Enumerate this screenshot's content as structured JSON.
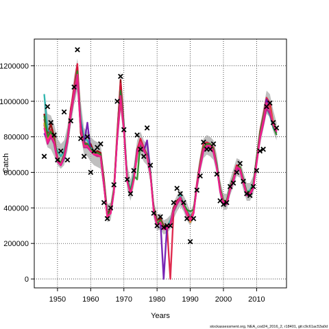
{
  "chart_data": {
    "type": "line",
    "title": "",
    "xlabel": "Years",
    "ylabel": "Catch",
    "xlim": [
      1943,
      2019
    ],
    "ylim": [
      -50000,
      1350000
    ],
    "x_ticks": [
      1950,
      1960,
      1970,
      1980,
      1990,
      2000,
      2010
    ],
    "x_tick_labels": [
      "1950",
      "1960",
      "1970",
      "1980",
      "1990",
      "2000",
      "2010"
    ],
    "y_ticks": [
      0,
      200000,
      400000,
      600000,
      800000,
      1000000,
      1200000
    ],
    "y_tick_labels": [
      "0",
      "200000",
      "400000",
      "600000",
      "800000",
      "1000000",
      "1200000"
    ],
    "grid": true,
    "grid_style": "dotted",
    "band_color": "#a9a9a9",
    "years": [
      1946,
      1947,
      1948,
      1949,
      1950,
      1951,
      1952,
      1953,
      1954,
      1955,
      1956,
      1957,
      1958,
      1959,
      1960,
      1961,
      1962,
      1963,
      1964,
      1965,
      1966,
      1967,
      1968,
      1969,
      1970,
      1971,
      1972,
      1973,
      1974,
      1975,
      1976,
      1977,
      1978,
      1979,
      1980,
      1981,
      1982,
      1983,
      1984,
      1985,
      1986,
      1987,
      1988,
      1989,
      1990,
      1991,
      1992,
      1993,
      1994,
      1995,
      1996,
      1997,
      1998,
      1999,
      2000,
      2001,
      2002,
      2003,
      2004,
      2005,
      2006,
      2007,
      2008,
      2009,
      2010,
      2011,
      2012,
      2013,
      2014,
      2015,
      2016
    ],
    "band_upper": [
      1050000,
      930000,
      920000,
      870000,
      790000,
      760000,
      780000,
      860000,
      980000,
      1140000,
      1240000,
      1000000,
      850000,
      830000,
      800000,
      780000,
      770000,
      760000,
      600000,
      420000,
      430000,
      560000,
      880000,
      1170000,
      960000,
      640000,
      560000,
      640000,
      780000,
      830000,
      780000,
      760000,
      660000,
      440000,
      360000,
      370000,
      330000,
      340000,
      360000,
      430000,
      470000,
      500000,
      470000,
      430000,
      380000,
      420000,
      580000,
      700000,
      790000,
      810000,
      800000,
      780000,
      700000,
      560000,
      480000,
      480000,
      560000,
      620000,
      680000,
      670000,
      600000,
      540000,
      540000,
      580000,
      720000,
      860000,
      960000,
      1060000,
      1040000,
      950000,
      880000
    ],
    "band_lower": [
      800000,
      740000,
      730000,
      690000,
      640000,
      620000,
      640000,
      720000,
      860000,
      980000,
      1060000,
      800000,
      700000,
      690000,
      660000,
      640000,
      630000,
      620000,
      480000,
      320000,
      330000,
      450000,
      730000,
      950000,
      780000,
      500000,
      440000,
      520000,
      650000,
      700000,
      660000,
      640000,
      540000,
      340000,
      270000,
      280000,
      250000,
      260000,
      280000,
      340000,
      380000,
      410000,
      380000,
      330000,
      300000,
      340000,
      480000,
      600000,
      680000,
      700000,
      690000,
      670000,
      590000,
      460000,
      390000,
      390000,
      470000,
      520000,
      580000,
      570000,
      500000,
      440000,
      440000,
      480000,
      620000,
      750000,
      840000,
      930000,
      910000,
      830000,
      780000
    ],
    "series": [
      {
        "color": "#8b0000",
        "values": [
          930000,
          820000,
          870000,
          800000,
          680000,
          640000,
          680000,
          780000,
          960000,
          1060000,
          1190000,
          820000,
          750000,
          760000,
          760000,
          710000,
          720000,
          710000,
          560000,
          370000,
          390000,
          500000,
          810000,
          1120000,
          860000,
          560000,
          490000,
          580000,
          730000,
          780000,
          720000,
          700000,
          590000,
          400000,
          330000,
          340000,
          300000,
          300000,
          310000,
          400000,
          440000,
          460000,
          420000,
          370000,
          330000,
          380000,
          530000,
          650000,
          740000,
          760000,
          750000,
          730000,
          640000,
          510000,
          440000,
          440000,
          510000,
          570000,
          640000,
          620000,
          550000,
          480000,
          480000,
          520000,
          660000,
          800000,
          900000,
          1000000,
          960000,
          880000,
          830000
        ]
      },
      {
        "color": "#20b2aa",
        "values": [
          1040000,
          840000,
          820000,
          760000,
          720000,
          690000,
          720000,
          800000,
          940000,
          1060000,
          1150000,
          900000,
          790000,
          780000,
          740000,
          720000,
          700000,
          690000,
          540000,
          360000,
          380000,
          500000,
          800000,
          1040000,
          870000,
          570000,
          500000,
          590000,
          720000,
          760000,
          720000,
          700000,
          600000,
          390000,
          310000,
          330000,
          280000,
          290000,
          330000,
          380000,
          420000,
          470000,
          420000,
          390000,
          350000,
          380000,
          520000,
          640000,
          730000,
          750000,
          750000,
          720000,
          650000,
          500000,
          440000,
          440000,
          520000,
          570000,
          620000,
          620000,
          560000,
          490000,
          500000,
          540000,
          680000,
          820000,
          890000,
          960000,
          920000,
          850000,
          820000
        ]
      },
      {
        "color": "#dc143c",
        "values": [
          900000,
          790000,
          840000,
          790000,
          680000,
          650000,
          700000,
          790000,
          950000,
          1080000,
          1210000,
          860000,
          770000,
          760000,
          720000,
          710000,
          710000,
          700000,
          530000,
          350000,
          370000,
          500000,
          830000,
          1100000,
          850000,
          550000,
          480000,
          570000,
          720000,
          790000,
          740000,
          700000,
          590000,
          390000,
          300000,
          320000,
          290000,
          290000,
          310,
          390000,
          430000,
          460000,
          410000,
          380000,
          340000,
          380000,
          540000,
          660000,
          760000,
          770000,
          760000,
          740000,
          640000,
          500000,
          430000,
          430000,
          520000,
          570000,
          640000,
          630000,
          550000,
          480000,
          490000,
          530000,
          680000,
          830000,
          920000,
          1020000,
          990000,
          880000,
          840000
        ]
      },
      {
        "color": "#6a0dad",
        "values": [
          820000,
          780000,
          820000,
          760000,
          670000,
          640000,
          680000,
          770000,
          920000,
          1040000,
          1130000,
          880000,
          760000,
          880000,
          720000,
          720000,
          700000,
          690000,
          530000,
          360000,
          380000,
          490000,
          800000,
          1050000,
          850000,
          550000,
          490000,
          560000,
          720000,
          760000,
          720000,
          780000,
          600000,
          390000,
          310000,
          330000,
          290,
          300000,
          310000,
          390000,
          430000,
          460000,
          410000,
          370000,
          330000,
          370000,
          530000,
          640000,
          730000,
          750000,
          750000,
          720000,
          630000,
          500000,
          430000,
          430000,
          510000,
          560000,
          620000,
          620000,
          550000,
          480000,
          480000,
          520000,
          670000,
          810000,
          900000,
          1010000,
          950000,
          870000,
          830000
        ]
      },
      {
        "color": "#c71585",
        "values": [
          870000,
          760000,
          800000,
          760000,
          660000,
          640000,
          690000,
          770000,
          920000,
          1030000,
          1120000,
          840000,
          740000,
          740000,
          720000,
          700000,
          690000,
          690000,
          530000,
          350000,
          370000,
          490000,
          790000,
          1000000,
          840000,
          550000,
          480000,
          560000,
          700000,
          760000,
          720000,
          690000,
          590000,
          380000,
          300000,
          320000,
          280000,
          280000,
          300000,
          380000,
          420000,
          450000,
          410000,
          360000,
          320000,
          370000,
          520000,
          630000,
          720000,
          740000,
          740000,
          710000,
          630000,
          490000,
          420000,
          420000,
          500000,
          550000,
          620000,
          610000,
          540000,
          470000,
          470000,
          510000,
          650000,
          790000,
          870000,
          960000,
          930000,
          860000,
          820000
        ]
      },
      {
        "color": "#d4a017",
        "values": [
          880000,
          780000,
          820000,
          780000,
          670000,
          650000,
          690000,
          780000,
          930000,
          1050000,
          1160000,
          850000,
          750000,
          750000,
          730000,
          710000,
          700000,
          690000,
          540000,
          350000,
          380000,
          500000,
          820000,
          1020000,
          850000,
          560000,
          480000,
          560000,
          710000,
          770000,
          730000,
          700000,
          590000,
          390000,
          310000,
          330000,
          290000,
          300000,
          310000,
          390000,
          430000,
          460000,
          420000,
          370000,
          320000,
          380000,
          530000,
          650000,
          740000,
          760000,
          750000,
          730000,
          640000,
          510000,
          440000,
          440000,
          510000,
          570000,
          630000,
          630000,
          550000,
          490000,
          490000,
          530000,
          670000,
          810000,
          910000,
          990000,
          960000,
          880000,
          840000
        ]
      },
      {
        "color": "#228b22",
        "values": [
          920000,
          800000,
          830000,
          780000,
          680000,
          650000,
          700000,
          780000,
          930000,
          1050000,
          1170000,
          860000,
          760000,
          760000,
          730000,
          710000,
          710000,
          700000,
          540000,
          360000,
          380000,
          500000,
          810000,
          1060000,
          860000,
          560000,
          490000,
          580000,
          560000,
          770000,
          730000,
          700000,
          600000,
          390000,
          310000,
          330000,
          290000,
          300000,
          310000,
          390000,
          430000,
          460000,
          420000,
          390000,
          380000,
          390000,
          530000,
          650000,
          740000,
          760000,
          760000,
          730000,
          640000,
          510000,
          440000,
          440000,
          520000,
          570000,
          630000,
          630000,
          560000,
          490000,
          490000,
          530000,
          680000,
          820000,
          910000,
          990000,
          950000,
          860000,
          810000
        ]
      },
      {
        "color": "#ff1493",
        "values": [
          850000,
          770000,
          810000,
          770000,
          670000,
          640000,
          690000,
          780000,
          930000,
          1050000,
          1150000,
          850000,
          750000,
          750000,
          720000,
          700000,
          700000,
          690000,
          530000,
          350000,
          370000,
          490000,
          800000,
          1030000,
          850000,
          550000,
          480000,
          560000,
          710000,
          770000,
          730000,
          690000,
          590000,
          380000,
          300000,
          320000,
          280000,
          290000,
          310000,
          390000,
          430000,
          460000,
          410000,
          370000,
          330000,
          370000,
          530000,
          640000,
          730000,
          750000,
          750000,
          720000,
          630000,
          500000,
          430000,
          430000,
          510000,
          560000,
          630000,
          620000,
          550000,
          480000,
          480000,
          520000,
          660000,
          800000,
          890000,
          990000,
          950000,
          870000,
          830000
        ]
      }
    ],
    "observed": {
      "marker": "x",
      "x": [
        1946,
        1947,
        1948,
        1949,
        1950,
        1951,
        1952,
        1953,
        1954,
        1955,
        1956,
        1957,
        1958,
        1959,
        1960,
        1961,
        1962,
        1963,
        1964,
        1965,
        1966,
        1967,
        1968,
        1969,
        1970,
        1971,
        1972,
        1973,
        1974,
        1975,
        1976,
        1977,
        1978,
        1979,
        1980,
        1981,
        1982,
        1983,
        1984,
        1985,
        1986,
        1987,
        1988,
        1989,
        1990,
        1991,
        1992,
        1993,
        1994,
        1995,
        1996,
        1997,
        1998,
        1999,
        2000,
        2001,
        2002,
        2003,
        2004,
        2005,
        2006,
        2007,
        2008,
        2009,
        2010,
        2011,
        2012,
        2013,
        2014,
        2015,
        2016
      ],
      "y": [
        690000,
        970000,
        880000,
        810000,
        670000,
        720000,
        940000,
        670000,
        890000,
        1080000,
        1290000,
        790000,
        690000,
        800000,
        600000,
        720000,
        740000,
        760000,
        430000,
        340000,
        400000,
        530000,
        1000000,
        1140000,
        840000,
        560000,
        480000,
        610000,
        810000,
        730000,
        690000,
        850000,
        640000,
        370000,
        300000,
        350000,
        290000,
        300000,
        300000,
        430000,
        510000,
        480000,
        430000,
        340000,
        210000,
        340000,
        500000,
        580000,
        770000,
        730000,
        730000,
        760000,
        590000,
        440000,
        420000,
        430000,
        520000,
        540000,
        600000,
        650000,
        550000,
        480000,
        470000,
        520000,
        610000,
        720000,
        730000,
        970000,
        990000,
        880000,
        850000
      ]
    }
  },
  "watermark": "stockassessment.org, NEA_cod24_2016_2, r18401, git:c9c61ac53a0d"
}
